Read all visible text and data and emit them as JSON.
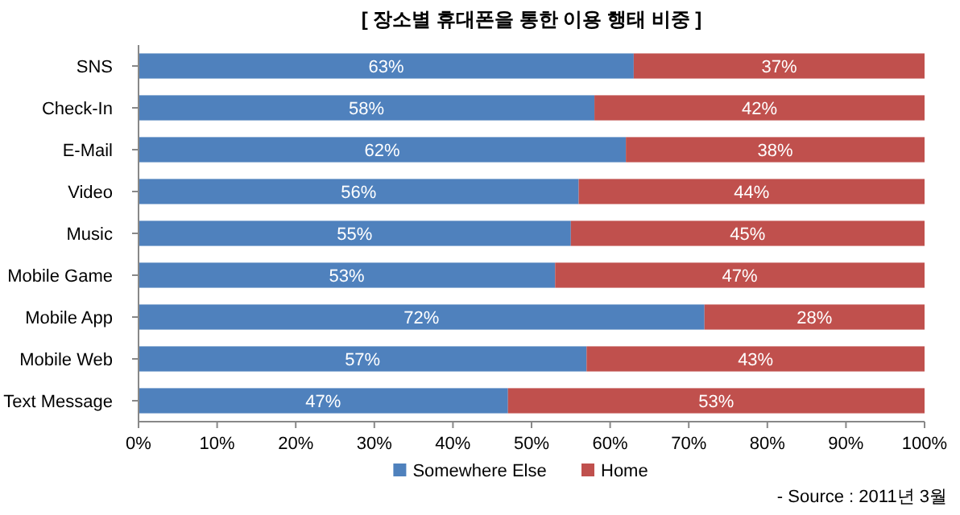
{
  "chart_data": {
    "type": "bar",
    "orientation": "horizontal",
    "stacked": true,
    "title": "[ 장소별 휴대폰을 통한 이용 행태 비중 ]",
    "categories": [
      "SNS",
      "Check-In",
      "E-Mail",
      "Video",
      "Music",
      "Mobile Game",
      "Mobile App",
      "Mobile Web",
      "Text Message"
    ],
    "series": [
      {
        "name": "Somewhere Else",
        "color": "#4f81bd",
        "values": [
          63,
          58,
          62,
          56,
          55,
          53,
          72,
          57,
          47
        ],
        "value_labels": [
          "63%",
          "58%",
          "62%",
          "56%",
          "55%",
          "53%",
          "72%",
          "57%",
          "47%"
        ]
      },
      {
        "name": "Home",
        "color": "#c0504d",
        "values": [
          37,
          42,
          38,
          44,
          45,
          47,
          28,
          43,
          53
        ],
        "value_labels": [
          "37%",
          "42%",
          "38%",
          "44%",
          "45%",
          "47%",
          "28%",
          "43%",
          "53%"
        ]
      }
    ],
    "xlim": [
      0,
      100
    ],
    "xticks": [
      {
        "value": 0,
        "label": "0%"
      },
      {
        "value": 10,
        "label": "10%"
      },
      {
        "value": 20,
        "label": "20%"
      },
      {
        "value": 30,
        "label": "30%"
      },
      {
        "value": 40,
        "label": "40%"
      },
      {
        "value": 50,
        "label": "50%"
      },
      {
        "value": 60,
        "label": "60%"
      },
      {
        "value": 70,
        "label": "70%"
      },
      {
        "value": 80,
        "label": "80%"
      },
      {
        "value": 90,
        "label": "90%"
      },
      {
        "value": 100,
        "label": "100%"
      }
    ],
    "legend": "bottom",
    "grid": false,
    "annotations": [
      "- Source : 2011년 3월"
    ]
  }
}
